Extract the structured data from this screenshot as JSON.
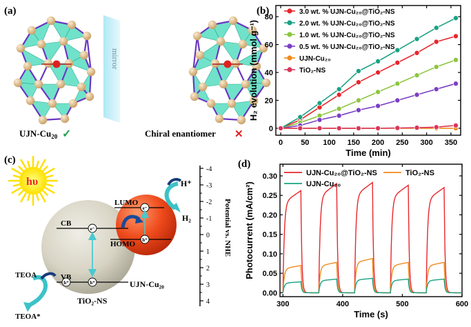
{
  "panels": {
    "a": {
      "letter": "(a)",
      "mirror_label": "mirror",
      "left_caption": "UJN-Cu",
      "left_caption_sub": "20",
      "left_mark": "✓",
      "right_caption": "Chiral enantiomer",
      "right_mark": "✕",
      "colors": {
        "triangle": "#40d8b8",
        "atom": "#e8c48a",
        "bond": "#6a38c0",
        "center": "#e02020"
      }
    },
    "c": {
      "letter": "(c)",
      "hv": "hυ",
      "cb": "CB",
      "vb": "VB",
      "lumo": "LUMO",
      "homo": "HOMO",
      "electron": "e⁻",
      "hole": "h⁺",
      "hplus": "H⁺",
      "h2": "H₂",
      "teoa": "TEOA",
      "teoa_star": "TEOA*",
      "tio2_label": "TiO₂-NS",
      "ujn_label": "UJN-Cu₂₀",
      "axis_label": "Potential vs. NHE",
      "axis_ticks": [
        "-4",
        "-3",
        "-2",
        "-1",
        "0",
        "1",
        "2",
        "3",
        "4"
      ]
    }
  },
  "chart_data": [
    {
      "id": "b",
      "letter": "(b)",
      "type": "line",
      "title": "",
      "xlabel": "Time (min)",
      "ylabel": "H₂ evolution (mmol g⁻¹)",
      "xlim": [
        -10,
        370
      ],
      "ylim": [
        -5,
        88
      ],
      "xticks": [
        0,
        50,
        100,
        150,
        200,
        250,
        300,
        350
      ],
      "yticks": [
        0,
        20,
        40,
        60,
        80
      ],
      "x": [
        0,
        40,
        80,
        120,
        160,
        200,
        240,
        280,
        320,
        360
      ],
      "legend_position": "top-left",
      "series": [
        {
          "name": "3.0 wt. % UJN-Cu₂₀@TiO₂-NS",
          "color": "#e8262b",
          "values": [
            0,
            6,
            15,
            24,
            33,
            40,
            47,
            54,
            62,
            66
          ]
        },
        {
          "name": "2.0 wt. % UJN-Cu₂₀@TiO₂-NS",
          "color": "#1aa283",
          "values": [
            0,
            8,
            18,
            28,
            41,
            48,
            56,
            64,
            72,
            79
          ]
        },
        {
          "name": "1.0 wt. % UJN-Cu₂₀@TiO₂-NS",
          "color": "#8dc63f",
          "values": [
            0,
            4,
            9,
            14,
            20,
            26,
            32,
            38,
            44,
            49
          ]
        },
        {
          "name": "0.5 wt. % UJN-Cu₂₀@TiO₂-NS",
          "color": "#7b3fc4",
          "values": [
            0,
            2,
            6,
            9,
            13,
            16,
            20,
            24,
            28,
            32
          ]
        },
        {
          "name": "UJN-Cu₂₀",
          "color": "#f08a1c",
          "values": [
            0,
            0,
            0,
            0,
            0,
            0,
            0,
            0,
            0,
            0
          ]
        },
        {
          "name": "TiO₂-NS",
          "color": "#d9365a",
          "values": [
            0,
            0,
            0,
            0,
            0,
            0,
            0.2,
            0.4,
            0.8,
            2
          ]
        }
      ]
    },
    {
      "id": "d",
      "letter": "(d)",
      "type": "line",
      "title": "",
      "xlabel": "Time (s)",
      "ylabel": "Photocurrent (mA/cm²)",
      "xlim": [
        295,
        600
      ],
      "ylim": [
        -0.01,
        0.33
      ],
      "xticks": [
        300,
        400,
        500,
        600
      ],
      "yticks": [
        0.0,
        0.05,
        0.1,
        0.15,
        0.2,
        0.25,
        0.3
      ],
      "on_times": [
        300,
        360,
        420,
        480,
        540
      ],
      "light_on_duration_s": 30,
      "legend_position": "top",
      "series": [
        {
          "name": "UJN-Cu₂₀@TiO₂-NS",
          "color": "#e8262b",
          "peaks": [
            0.262,
            0.28,
            0.283,
            0.276,
            0.27
          ]
        },
        {
          "name": "TiO₂-NS",
          "color": "#f08a1c",
          "peaks": [
            0.07,
            0.078,
            0.088,
            0.078,
            0.078
          ]
        },
        {
          "name": "UJN-Cu₂₀",
          "color": "#1aa283",
          "peaks": [
            0.028,
            0.035,
            0.037,
            0.035,
            0.035
          ]
        }
      ]
    }
  ]
}
